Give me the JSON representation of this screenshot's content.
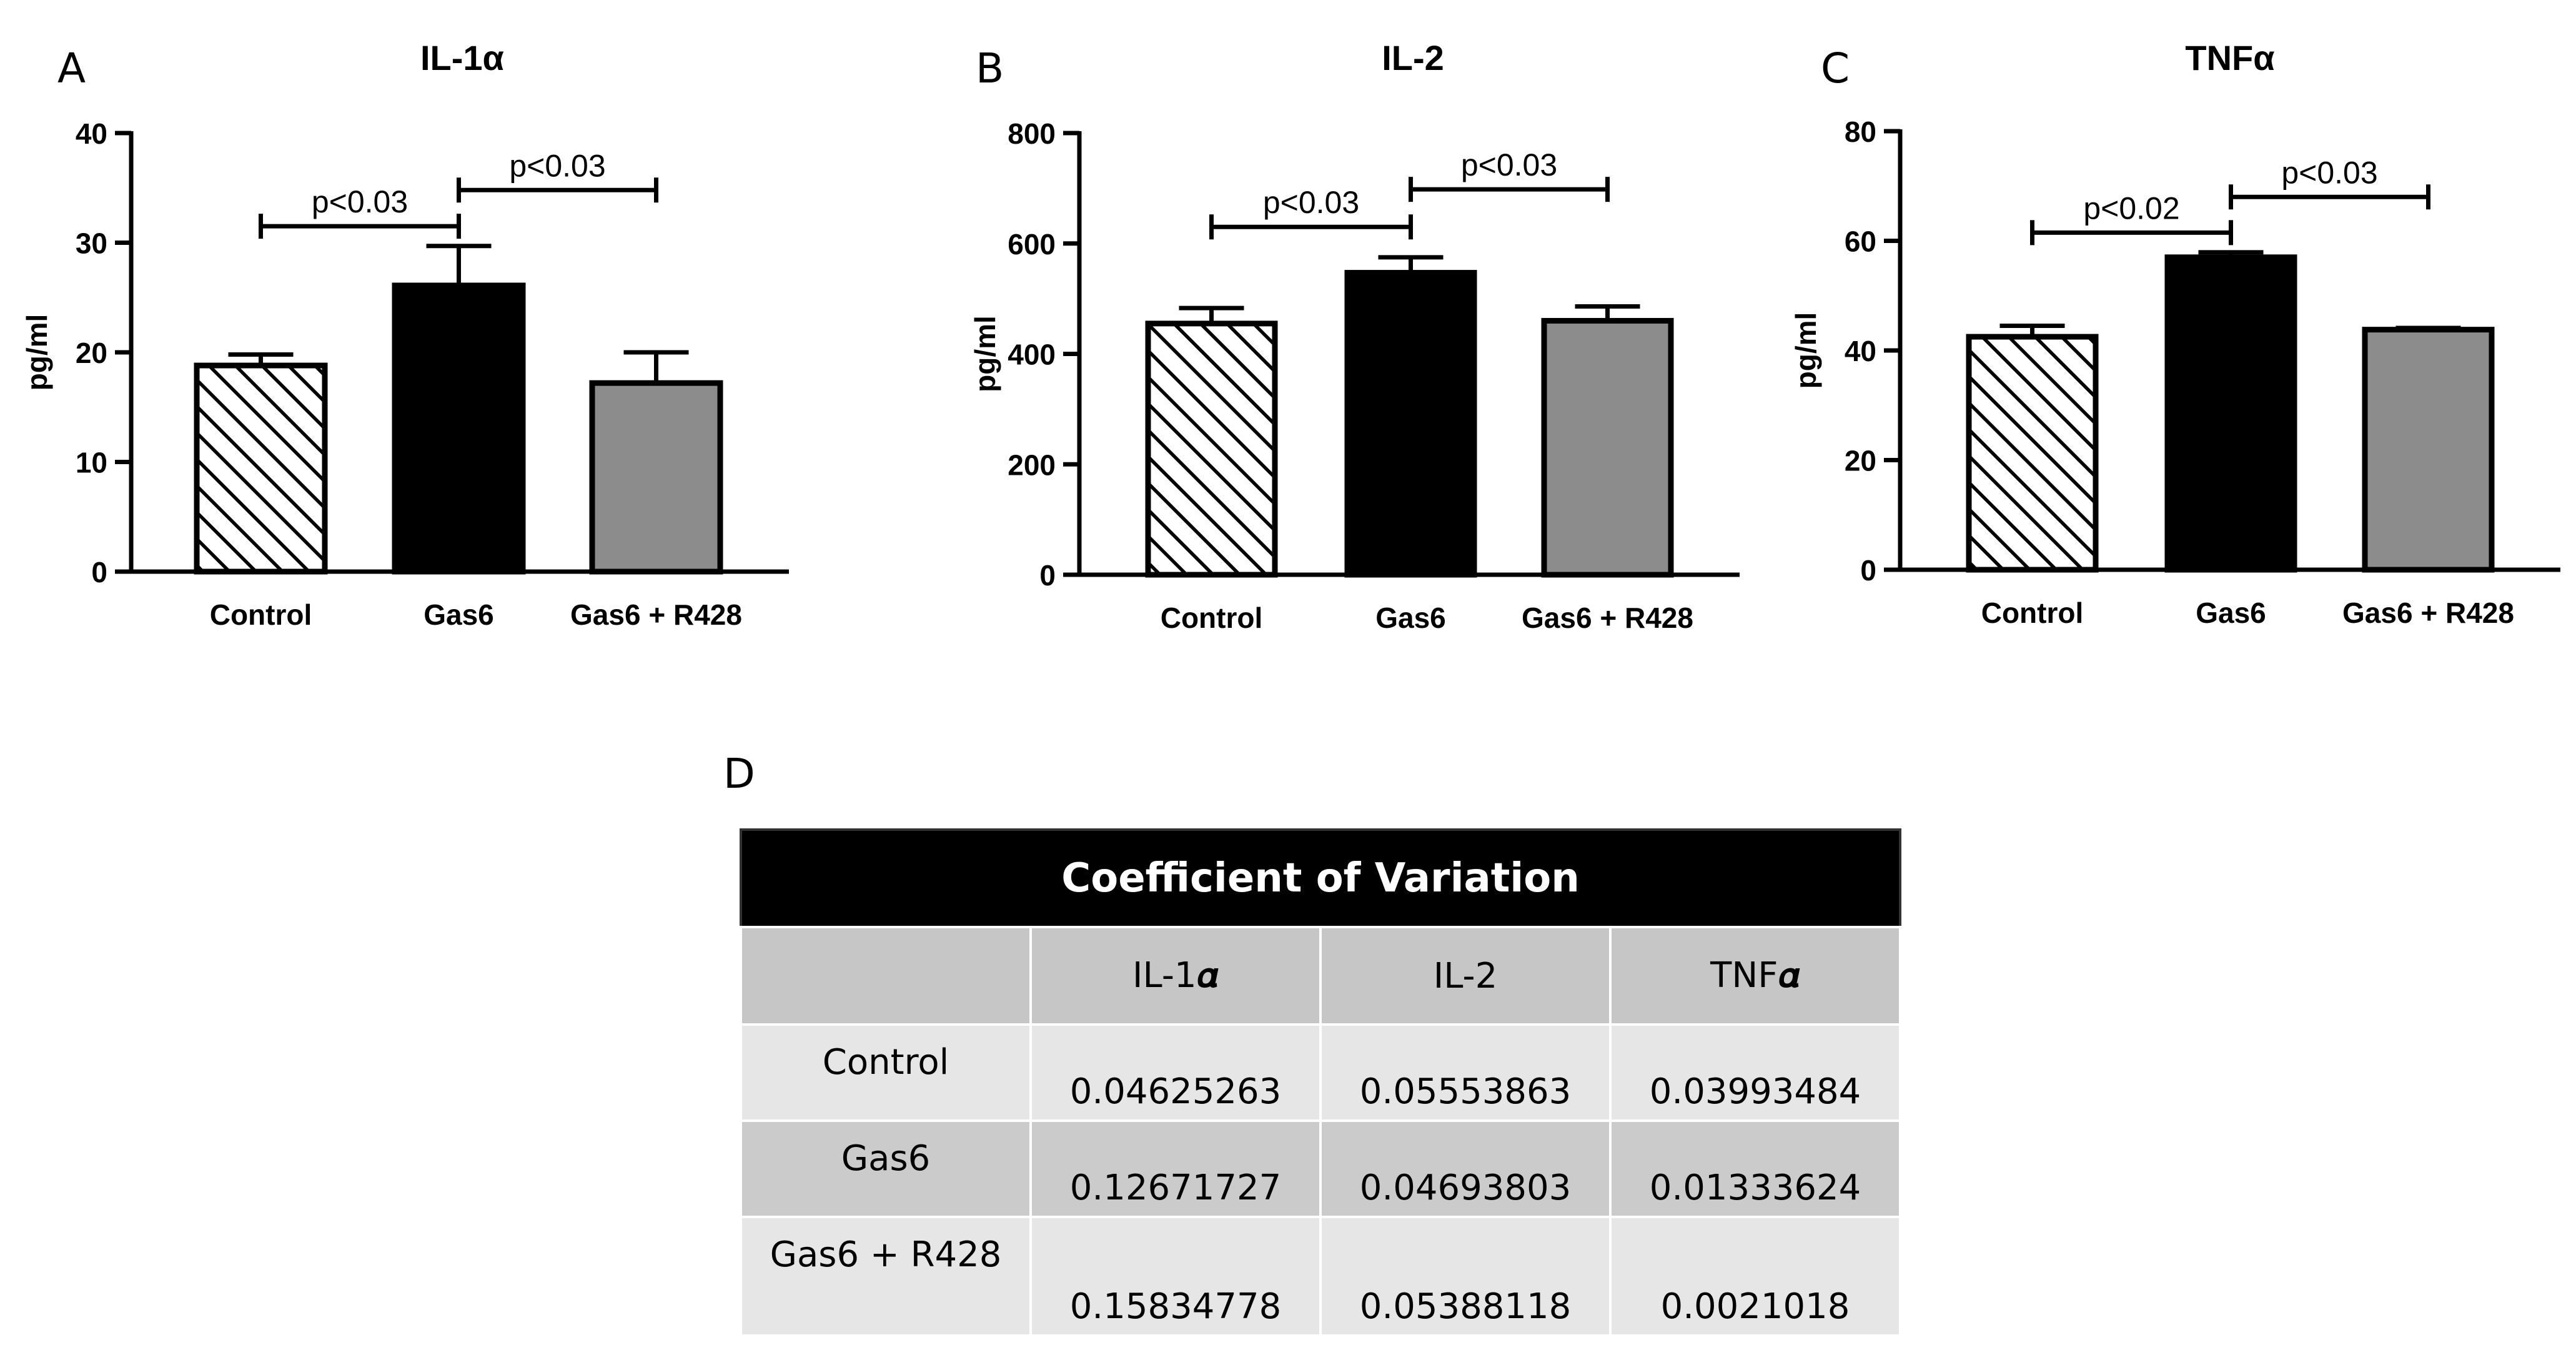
{
  "chart_data": [
    {
      "panel": "A",
      "type": "bar",
      "title": "IL-1α",
      "ylabel": "pg/ml",
      "xlabel": "",
      "categories": [
        "Control",
        "Gas6",
        "Gas6 + R428"
      ],
      "values": [
        18.8,
        26.1,
        17.2
      ],
      "errors": [
        1.0,
        3.6,
        2.8
      ],
      "ylim": [
        0,
        40
      ],
      "yticks": [
        0,
        10,
        20,
        30,
        40
      ],
      "fills": [
        "hatch",
        "#000000",
        "#8c8c8c"
      ],
      "comparisons": [
        {
          "from": 0,
          "to": 1,
          "label": "p<0.03",
          "y": 31.5
        },
        {
          "from": 1,
          "to": 2,
          "label": "p<0.03",
          "y": 34.8
        }
      ]
    },
    {
      "panel": "B",
      "type": "bar",
      "title": "IL-2",
      "ylabel": "pg/ml",
      "xlabel": "",
      "categories": [
        "Control",
        "Gas6",
        "Gas6 + R428"
      ],
      "values": [
        455,
        547,
        460
      ],
      "errors": [
        28,
        28,
        26
      ],
      "ylim": [
        0,
        800
      ],
      "yticks": [
        0,
        200,
        400,
        600,
        800
      ],
      "fills": [
        "hatch",
        "#000000",
        "#8c8c8c"
      ],
      "comparisons": [
        {
          "from": 0,
          "to": 1,
          "label": "p<0.03",
          "y": 630
        },
        {
          "from": 1,
          "to": 2,
          "label": "p<0.03",
          "y": 698
        }
      ]
    },
    {
      "panel": "C",
      "type": "bar",
      "title": "TNFα",
      "ylabel": "pg/ml",
      "xlabel": "",
      "categories": [
        "Control",
        "Gas6",
        "Gas6 + R428"
      ],
      "values": [
        42.5,
        57.0,
        43.8
      ],
      "errors": [
        2.0,
        0.9,
        0.3
      ],
      "ylim": [
        0,
        80
      ],
      "yticks": [
        0,
        20,
        40,
        60,
        80
      ],
      "fills": [
        "hatch",
        "#000000",
        "#8c8c8c"
      ],
      "comparisons": [
        {
          "from": 0,
          "to": 1,
          "label": "p<0.02",
          "y": 61.5
        },
        {
          "from": 1,
          "to": 2,
          "label": "p<0.03",
          "y": 68.0
        }
      ]
    }
  ],
  "table": {
    "letter": "D",
    "title": "Coefficient of Variation",
    "columns": [
      "",
      "IL-1𝜶",
      "IL-2",
      "TNF𝜶"
    ],
    "rows": [
      {
        "label": "Control",
        "values": [
          "0.04625263",
          "0.05553863",
          "0.03993484"
        ]
      },
      {
        "label": "Gas6",
        "values": [
          "0.12671727",
          "0.04693803",
          "0.01333624"
        ]
      },
      {
        "label": "Gas6 + R428",
        "values": [
          "0.15834778",
          "0.05388118",
          "0.0021018"
        ]
      }
    ]
  }
}
